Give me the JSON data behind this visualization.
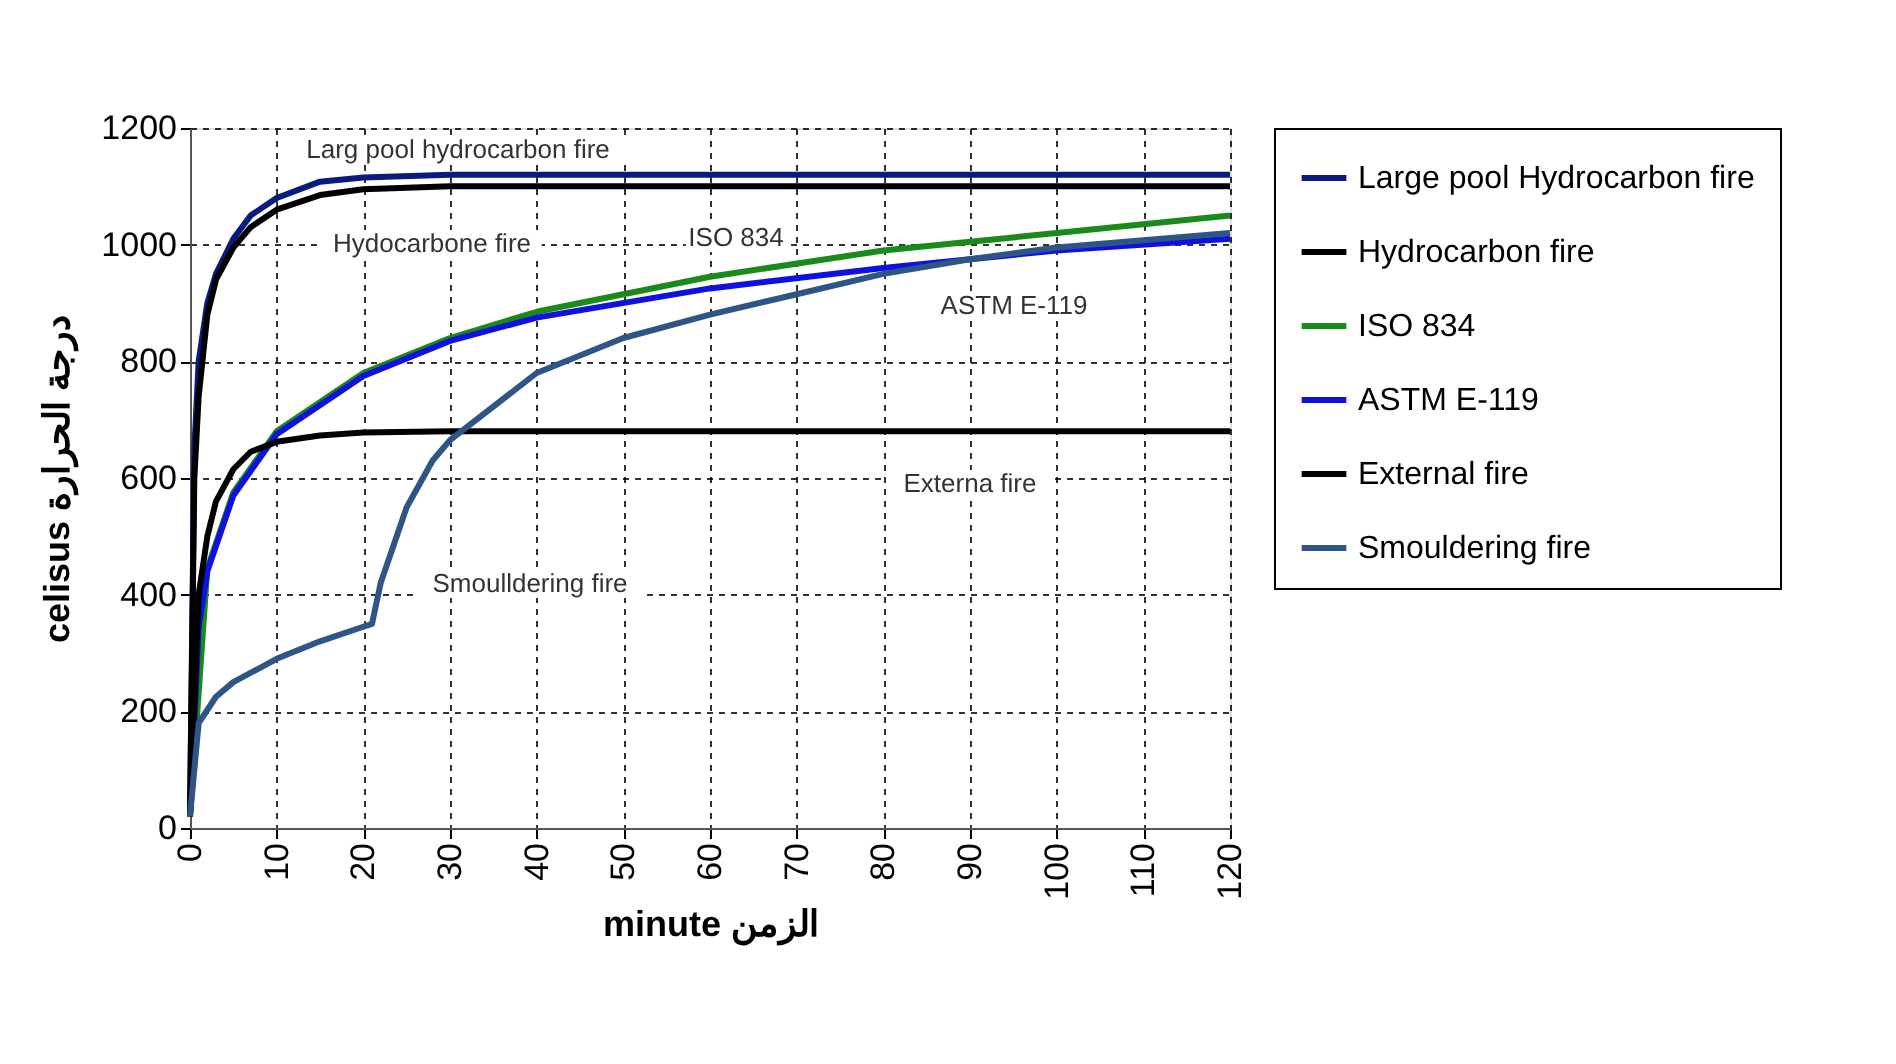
{
  "chart_data": {
    "type": "line",
    "xlabel": "minute الزمن",
    "ylabel": "celisus درجة الحرارة",
    "xlim": [
      0,
      120
    ],
    "xticks": [
      0,
      10,
      20,
      30,
      40,
      50,
      60,
      70,
      80,
      90,
      100,
      110,
      120
    ],
    "ylim": [
      0,
      1200
    ],
    "yticks": [
      0,
      200,
      400,
      600,
      800,
      1000,
      1200
    ],
    "grid": true,
    "legend": "right",
    "series": [
      {
        "name": "Large pool Hydrocarbon fire",
        "color": "#0a1a80",
        "x": [
          0,
          0.5,
          1,
          2,
          3,
          5,
          7,
          10,
          15,
          20,
          30,
          60,
          120
        ],
        "values": [
          20,
          650,
          800,
          900,
          950,
          1010,
          1050,
          1080,
          1108,
          1115,
          1120,
          1120,
          1120
        ]
      },
      {
        "name": "Hydrocarbon fire",
        "color": "#000000",
        "x": [
          0,
          0.5,
          1,
          2,
          3,
          5,
          7,
          10,
          15,
          20,
          30,
          60,
          120
        ],
        "values": [
          20,
          600,
          740,
          880,
          940,
          995,
          1030,
          1060,
          1085,
          1095,
          1100,
          1100,
          1100
        ]
      },
      {
        "name": "ISO 834",
        "color": "#1a8a1a",
        "x": [
          0,
          2,
          5,
          10,
          20,
          30,
          40,
          60,
          80,
          90,
          100,
          120
        ],
        "values": [
          20,
          445,
          575,
          680,
          780,
          840,
          885,
          945,
          990,
          1005,
          1020,
          1050
        ]
      },
      {
        "name": "ASTM E-119",
        "color": "#1010e0",
        "x": [
          0,
          1,
          2,
          5,
          10,
          20,
          30,
          40,
          60,
          80,
          90,
          100,
          120
        ],
        "values": [
          20,
          345,
          440,
          570,
          675,
          775,
          835,
          875,
          925,
          960,
          975,
          990,
          1010
        ]
      },
      {
        "name": "External fire",
        "color": "#000000",
        "x": [
          0,
          1,
          2,
          3,
          5,
          7,
          10,
          15,
          20,
          30,
          60,
          120
        ],
        "values": [
          20,
          400,
          500,
          560,
          615,
          645,
          662,
          673,
          678,
          680,
          680,
          680
        ]
      },
      {
        "name": "Smouldering fire",
        "color": "#2e5586",
        "x": [
          0,
          1,
          3,
          5,
          10,
          15,
          20,
          21,
          22,
          25,
          28,
          30,
          40,
          50,
          60,
          70,
          80,
          90,
          100,
          120
        ],
        "values": [
          20,
          180,
          225,
          250,
          290,
          320,
          345,
          350,
          420,
          550,
          630,
          665,
          780,
          840,
          880,
          915,
          950,
          975,
          995,
          1020
        ]
      }
    ],
    "annotations": [
      "Larg pool hydrocarbon fire",
      "Hydocarbone fire",
      "ISO 834",
      "ASTM E-119",
      "Externa fire",
      "Smoulldering fire"
    ]
  }
}
